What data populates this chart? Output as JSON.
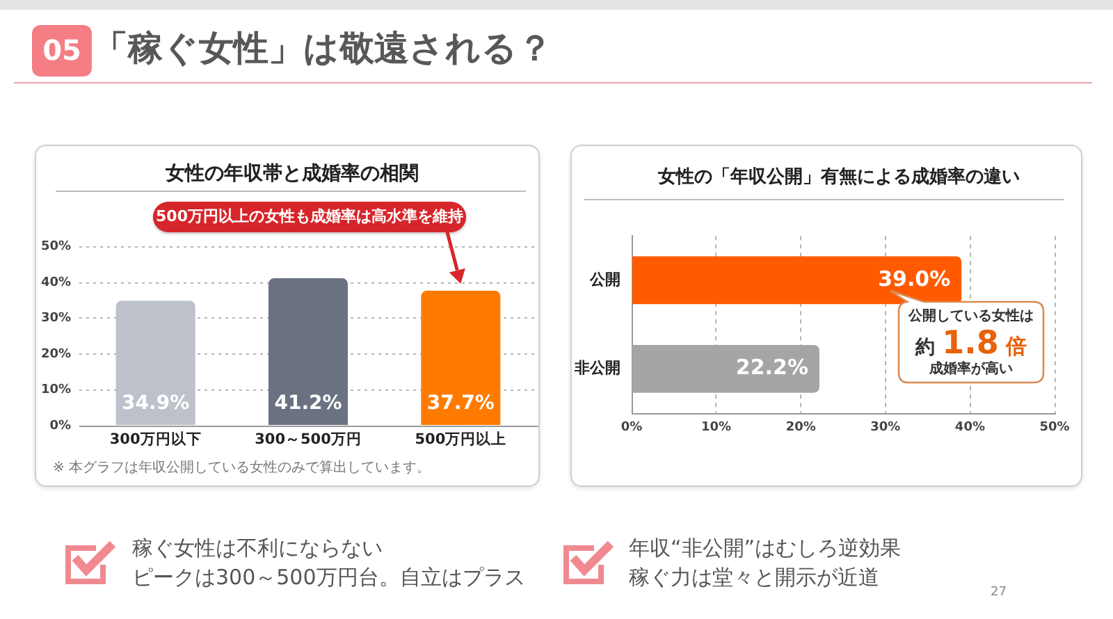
{
  "chart_data": [
    {
      "type": "bar",
      "title": "女性の年収帯と成婚率の相関",
      "categories": [
        "300万円以下",
        "300～500万円",
        "500万円以上"
      ],
      "values": [
        34.9,
        41.2,
        37.7
      ],
      "colors": [
        "#bcc1ca",
        "#6a7282",
        "#ff7b00"
      ],
      "value_labels": [
        "34.9%",
        "41.2%",
        "37.7%"
      ],
      "ylim": [
        0,
        50
      ],
      "yticks": [
        {
          "value": 0,
          "label": "0%"
        },
        {
          "value": 10,
          "label": "10%"
        },
        {
          "value": 20,
          "label": "20%"
        },
        {
          "value": 30,
          "label": "30%"
        },
        {
          "value": 40,
          "label": "40%"
        },
        {
          "value": 50,
          "label": "50%"
        }
      ],
      "grid": "y",
      "annotations": [
        "05",
        "「稼ぐ女性」は敬遠される？",
        "500万円以上の女性も成婚率は高水準を維持",
        "※ 本グラフは年収公開している女性のみで算出しています。",
        "稼ぐ女性は不利にならない",
        "ピークは300～500万円台。自立はプラス"
      ]
    },
    {
      "type": "bar",
      "orientation": "horizontal",
      "title": "女性の「年収公開」有無による成婚率の違い",
      "categories": [
        "公開",
        "非公開"
      ],
      "values": [
        39.0,
        22.2
      ],
      "colors": [
        "#ff5a00",
        "#a5a5a5"
      ],
      "value_labels": [
        "39.0%",
        "22.2%"
      ],
      "xlim": [
        0,
        50
      ],
      "xticks": [
        {
          "value": 0,
          "label": "0%"
        },
        {
          "value": 10,
          "label": "10%"
        },
        {
          "value": 20,
          "label": "20%"
        },
        {
          "value": 30,
          "label": "30%"
        },
        {
          "value": 40,
          "label": "40%"
        },
        {
          "value": 50,
          "label": "50%"
        }
      ],
      "grid": "x",
      "annotations": [
        "公開している女性は",
        "約1.8倍",
        "成婚率が高い",
        "年収“非公開”はむしろ逆効果",
        "稼ぐ力は堂々と開示が近道",
        "27"
      ]
    }
  ]
}
